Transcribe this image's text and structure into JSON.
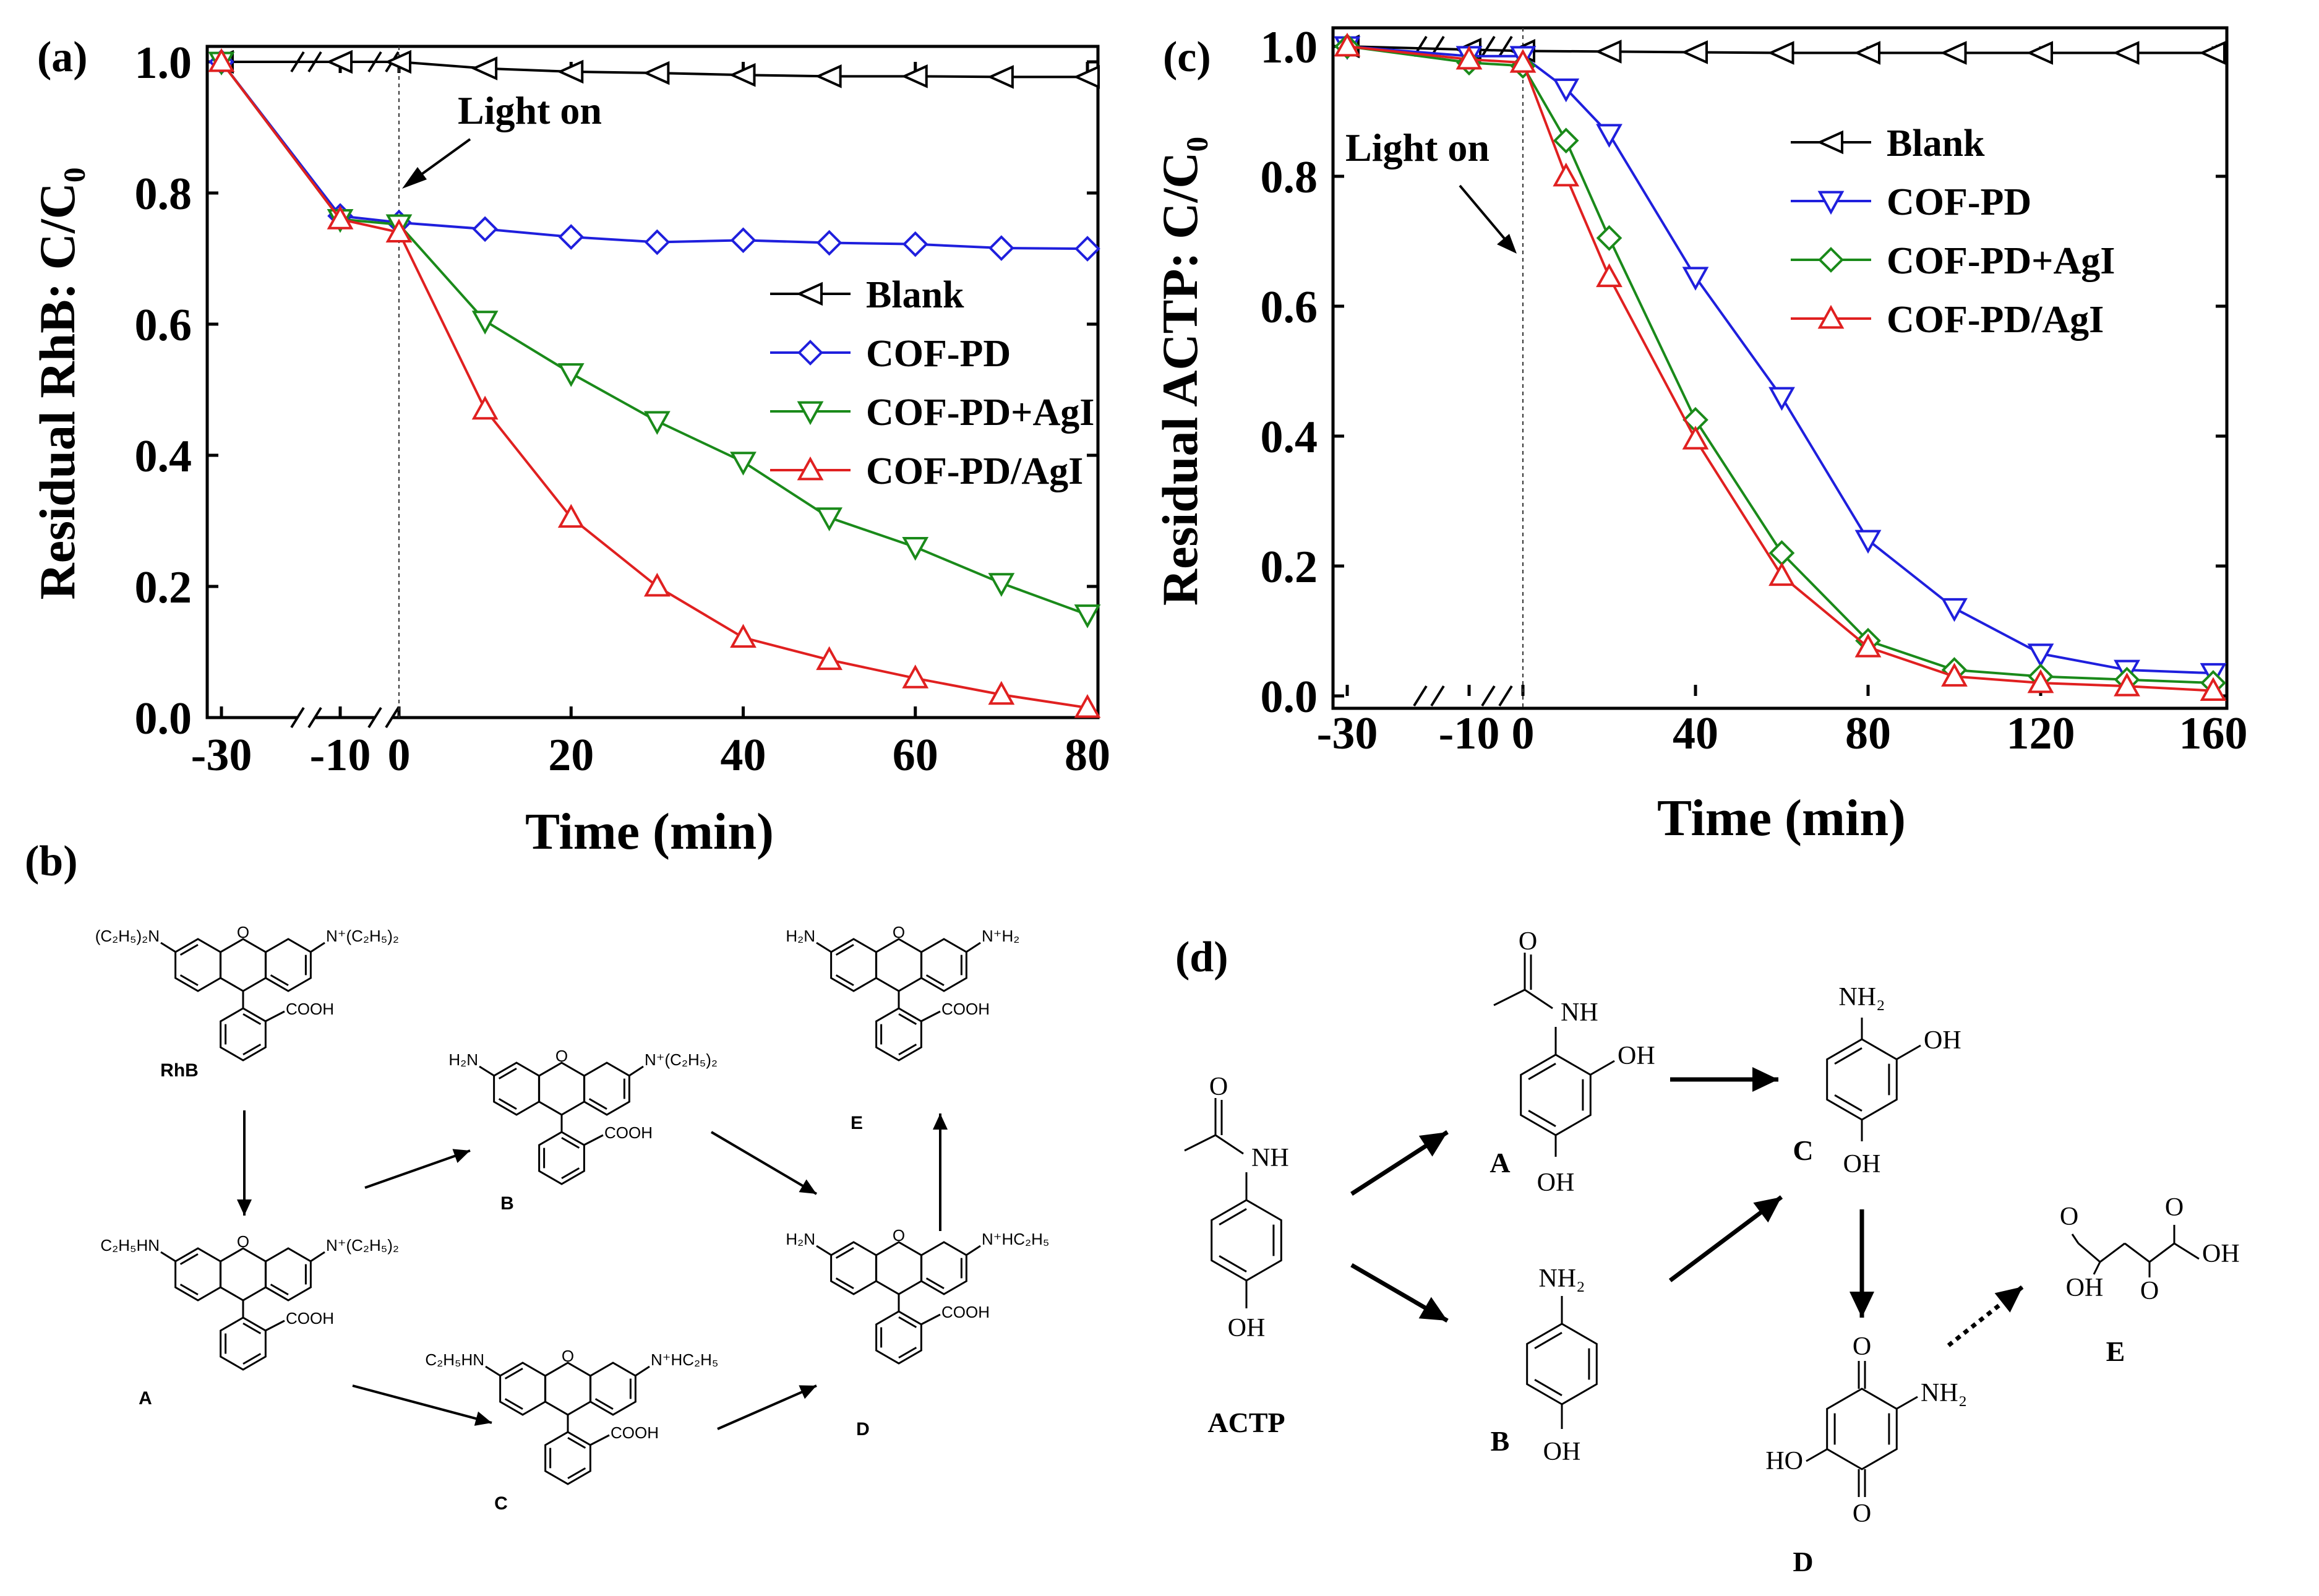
{
  "panels": {
    "a_label": "(a)",
    "b_label": "(b)",
    "c_label": "(c)",
    "d_label": "(d)"
  },
  "annotations": {
    "light_on_a": "Light on",
    "light_on_c": "Light on"
  },
  "colors": {
    "blank": "#000000",
    "cof_pd": "#1f1fdd",
    "cof_pd_agi_mix": "#1a8a1a",
    "cof_pd_agi": "#e02020"
  },
  "chart_data": [
    {
      "panel": "a",
      "type": "line",
      "title": "",
      "xlabel": "Time (min)",
      "ylabel": "Residual RhB: C/C₀",
      "xlim": [
        -30,
        80
      ],
      "ylim": [
        0.0,
        1.0
      ],
      "x_ticks": [
        -30,
        -10,
        0,
        20,
        40,
        60,
        80
      ],
      "x_tick_labels": [
        "-30",
        "-10",
        "0",
        "20",
        "40",
        "60",
        "80"
      ],
      "y_ticks": [
        0.0,
        0.2,
        0.4,
        0.6,
        0.8,
        1.0
      ],
      "y_tick_labels": [
        "0.0",
        "0.2",
        "0.4",
        "0.6",
        "0.8",
        "1.0"
      ],
      "axis_break": "between -30 and -10 and between -10 and 0",
      "legend_position": "center-right",
      "series": [
        {
          "name": "Blank",
          "marker": "triangle-left",
          "x": [
            -30,
            -10,
            0,
            10,
            20,
            30,
            40,
            50,
            60,
            70,
            80
          ],
          "values": [
            1.0,
            1.0,
            1.0,
            0.99,
            0.985,
            0.983,
            0.98,
            0.978,
            0.978,
            0.977,
            0.977
          ]
        },
        {
          "name": "COF-PD",
          "marker": "diamond",
          "x": [
            -30,
            -10,
            0,
            10,
            20,
            30,
            40,
            50,
            60,
            70,
            80
          ],
          "values": [
            1.0,
            0.765,
            0.755,
            0.745,
            0.733,
            0.725,
            0.728,
            0.724,
            0.722,
            0.716,
            0.715
          ]
        },
        {
          "name": "COF-PD+AgI",
          "marker": "triangle-down",
          "x": [
            -30,
            -10,
            0,
            10,
            20,
            30,
            40,
            50,
            60,
            70,
            80
          ],
          "values": [
            1.0,
            0.76,
            0.752,
            0.605,
            0.525,
            0.452,
            0.39,
            0.305,
            0.26,
            0.205,
            0.157
          ]
        },
        {
          "name": "COF-PD/AgI",
          "marker": "triangle-up",
          "x": [
            -30,
            -10,
            0,
            10,
            20,
            30,
            40,
            50,
            60,
            70,
            80
          ],
          "values": [
            1.0,
            0.76,
            0.74,
            0.47,
            0.305,
            0.2,
            0.122,
            0.088,
            0.06,
            0.035,
            0.015
          ]
        }
      ]
    },
    {
      "panel": "c",
      "type": "line",
      "title": "",
      "xlabel": "Time (min)",
      "ylabel": "Residual ACTP: C/C₀",
      "xlim": [
        -30,
        160
      ],
      "ylim": [
        0.0,
        1.0
      ],
      "x_ticks": [
        -30,
        -10,
        0,
        40,
        80,
        120,
        160
      ],
      "x_tick_labels": [
        "-30",
        "-10",
        "0",
        "40",
        "80",
        "120",
        "160"
      ],
      "y_ticks": [
        0.0,
        0.2,
        0.4,
        0.6,
        0.8,
        1.0
      ],
      "y_tick_labels": [
        "0.0",
        "0.2",
        "0.4",
        "0.6",
        "0.8",
        "1.0"
      ],
      "axis_break": "between -30 and -10 and between -10 and 0",
      "legend_position": "top-right",
      "series": [
        {
          "name": "Blank",
          "marker": "triangle-left",
          "x": [
            -30,
            -10,
            0,
            20,
            40,
            60,
            80,
            100,
            120,
            140,
            160
          ],
          "values": [
            1.0,
            0.995,
            0.993,
            0.992,
            0.991,
            0.99,
            0.99,
            0.99,
            0.99,
            0.99,
            0.99
          ]
        },
        {
          "name": "COF-PD",
          "marker": "triangle-down",
          "x": [
            -30,
            -10,
            0,
            10,
            20,
            40,
            60,
            80,
            100,
            120,
            140,
            160
          ],
          "values": [
            1.0,
            0.985,
            0.985,
            0.935,
            0.865,
            0.645,
            0.46,
            0.24,
            0.135,
            0.065,
            0.04,
            0.035
          ]
        },
        {
          "name": "COF-PD+AgI",
          "marker": "diamond",
          "x": [
            -30,
            -10,
            0,
            10,
            20,
            40,
            60,
            80,
            100,
            120,
            140,
            160
          ],
          "values": [
            1.0,
            0.975,
            0.97,
            0.855,
            0.705,
            0.425,
            0.22,
            0.085,
            0.04,
            0.03,
            0.025,
            0.02
          ]
        },
        {
          "name": "COF-PD/AgI",
          "marker": "triangle-up",
          "x": [
            -30,
            -10,
            0,
            10,
            20,
            40,
            60,
            80,
            100,
            120,
            140,
            160
          ],
          "values": [
            1.0,
            0.98,
            0.975,
            0.8,
            0.645,
            0.395,
            0.185,
            0.075,
            0.03,
            0.02,
            0.015,
            0.008
          ]
        }
      ]
    }
  ],
  "scheme_b": {
    "compounds": [
      "RhB",
      "A",
      "B",
      "C",
      "D",
      "E"
    ],
    "groups": {
      "net2": "(C₂H₅)₂N",
      "nplus_et2": "N⁺(C₂H₅)₂",
      "nhet": "C₂H₅HN",
      "nplus_het": "N⁺HC₂H₅",
      "nh2": "H₂N",
      "nplus_h2": "N⁺H₂",
      "cooh": "COOH"
    }
  },
  "scheme_d": {
    "compounds": [
      "ACTP",
      "A",
      "B",
      "C",
      "D",
      "E"
    ],
    "groups": {
      "oh": "OH",
      "nh": "NH",
      "nh2": "NH₂",
      "o": "O",
      "ho": "HO"
    }
  }
}
